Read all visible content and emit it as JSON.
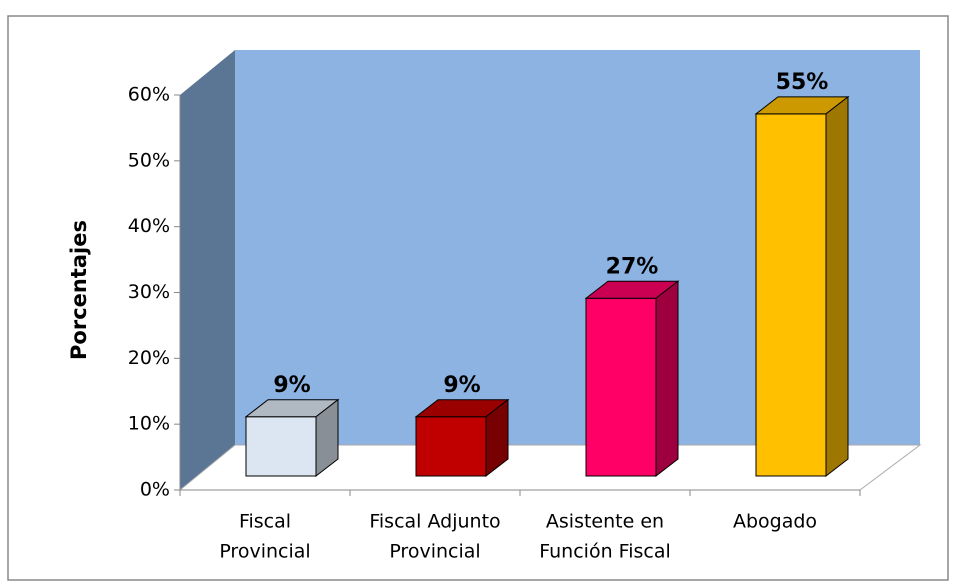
{
  "chart_data": {
    "type": "bar3d",
    "ylabel": "Porcentajes",
    "categories": [
      [
        "Fiscal",
        "Provincial"
      ],
      [
        "Fiscal Adjunto",
        "Provincial"
      ],
      [
        "Asistente en",
        "Función Fiscal"
      ],
      [
        "Abogado"
      ]
    ],
    "values": [
      9,
      9,
      27,
      55
    ],
    "value_labels": [
      "9%",
      "9%",
      "27%",
      "55%"
    ],
    "colors": [
      "#dce6f2",
      "#c00000",
      "#ff0066",
      "#ffc000"
    ],
    "ylim": [
      0,
      60
    ],
    "yticks": [
      {
        "value": 0,
        "label": "0%"
      },
      {
        "value": 10,
        "label": "10%"
      },
      {
        "value": 20,
        "label": "20%"
      },
      {
        "value": 30,
        "label": "30%"
      },
      {
        "value": 40,
        "label": "40%"
      },
      {
        "value": 50,
        "label": "50%"
      },
      {
        "value": 60,
        "label": "60%"
      }
    ]
  }
}
